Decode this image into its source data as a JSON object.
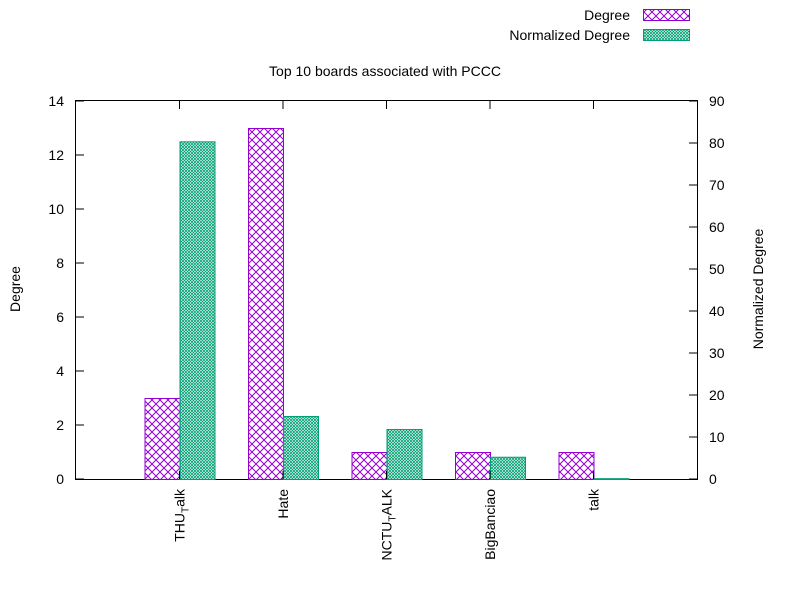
{
  "chart_data": {
    "type": "bar",
    "title": "Top 10 boards associated with PCCC",
    "ylabel": "Degree",
    "y2label": "Normalized Degree",
    "ylim": [
      0,
      14
    ],
    "y2lim": [
      0,
      90
    ],
    "yticks": [
      "0",
      "2",
      "4",
      "6",
      "8",
      "10",
      "12",
      "14"
    ],
    "y2ticks": [
      "0",
      "10",
      "20",
      "30",
      "40",
      "50",
      "60",
      "70",
      "80",
      "90"
    ],
    "categories": [
      {
        "main": "THU",
        "sub": "T",
        "rest": "alk"
      },
      {
        "main": "Hate",
        "sub": "",
        "rest": ""
      },
      {
        "main": "NCTU",
        "sub": "T",
        "rest": "ALK"
      },
      {
        "main": "BigBanciao",
        "sub": "",
        "rest": ""
      },
      {
        "main": "talk",
        "sub": "",
        "rest": ""
      }
    ],
    "series": [
      {
        "name": "Degree",
        "axis": "left",
        "color": "#9400d3",
        "values": [
          3,
          13,
          1,
          1,
          1
        ]
      },
      {
        "name": "Normalized Degree",
        "axis": "right",
        "color": "#009e73",
        "values": [
          80.4,
          15,
          11.9,
          5.3,
          0.2
        ]
      }
    ],
    "legend_position": "top-right",
    "grid": false
  }
}
